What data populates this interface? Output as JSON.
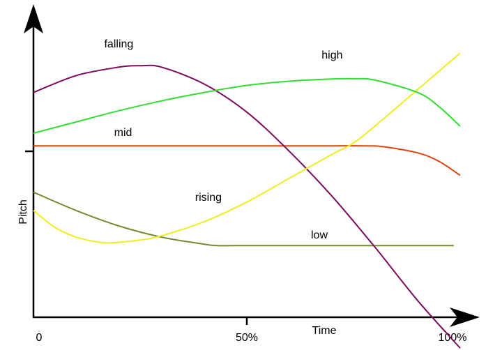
{
  "chart_data": {
    "type": "line",
    "xlabel": "Time",
    "ylabel": "Pitch",
    "x_ticks": [
      "0",
      "50%",
      "100%"
    ],
    "xlim": [
      0,
      100
    ],
    "ylim": [
      0,
      100
    ],
    "grid": false,
    "legend": "none",
    "series": [
      {
        "name": "falling",
        "color": "#7a0a5e",
        "points": [
          [
            0,
            80
          ],
          [
            10,
            86
          ],
          [
            20,
            89
          ],
          [
            25,
            89.5
          ],
          [
            30,
            89
          ],
          [
            40,
            83
          ],
          [
            50,
            73
          ],
          [
            60,
            59
          ],
          [
            70,
            43
          ],
          [
            80,
            25
          ],
          [
            90,
            6
          ],
          [
            100,
            -11
          ]
        ]
      },
      {
        "name": "high",
        "color": "#33dd33",
        "points": [
          [
            0,
            65.5
          ],
          [
            10,
            69.5
          ],
          [
            20,
            73.5
          ],
          [
            30,
            77
          ],
          [
            40,
            80
          ],
          [
            50,
            82.5
          ],
          [
            60,
            84
          ],
          [
            70,
            84.8
          ],
          [
            75,
            84.9
          ],
          [
            80,
            84.4
          ],
          [
            90,
            80
          ],
          [
            95,
            75
          ],
          [
            100,
            68
          ]
        ]
      },
      {
        "name": "mid",
        "color": "#dd4411",
        "points": [
          [
            0,
            61
          ],
          [
            10,
            61
          ],
          [
            20,
            61
          ],
          [
            30,
            61
          ],
          [
            40,
            61
          ],
          [
            50,
            61
          ],
          [
            60,
            61
          ],
          [
            70,
            61
          ],
          [
            78,
            61
          ],
          [
            82,
            60.7
          ],
          [
            90,
            58.5
          ],
          [
            95,
            55.5
          ],
          [
            100,
            50.5
          ]
        ]
      },
      {
        "name": "rising",
        "color": "#eeee22",
        "points": [
          [
            0,
            38
          ],
          [
            5,
            32
          ],
          [
            10,
            28.5
          ],
          [
            15,
            26.8
          ],
          [
            18,
            26.5
          ],
          [
            25,
            27.5
          ],
          [
            30,
            29
          ],
          [
            40,
            34
          ],
          [
            50,
            41
          ],
          [
            60,
            49.5
          ],
          [
            70,
            58
          ],
          [
            75,
            62
          ],
          [
            80,
            68
          ],
          [
            90,
            81
          ],
          [
            100,
            94
          ]
        ]
      },
      {
        "name": "low",
        "color": "#778833",
        "points": [
          [
            0,
            44.5
          ],
          [
            10,
            38
          ],
          [
            20,
            32.5
          ],
          [
            30,
            28.5
          ],
          [
            40,
            26
          ],
          [
            43,
            25.5
          ],
          [
            50,
            25.5
          ],
          [
            60,
            25.5
          ],
          [
            70,
            25.5
          ],
          [
            80,
            25.5
          ],
          [
            90,
            25.5
          ],
          [
            98.5,
            25.5
          ]
        ]
      }
    ],
    "annotations": [
      {
        "text": "falling",
        "x": 20,
        "y": 96
      },
      {
        "text": "high",
        "x": 70,
        "y": 92
      },
      {
        "text": "mid",
        "x": 21,
        "y": 64.5
      },
      {
        "text": "rising",
        "x": 41,
        "y": 41.5
      },
      {
        "text": "low",
        "x": 67,
        "y": 28
      }
    ]
  }
}
